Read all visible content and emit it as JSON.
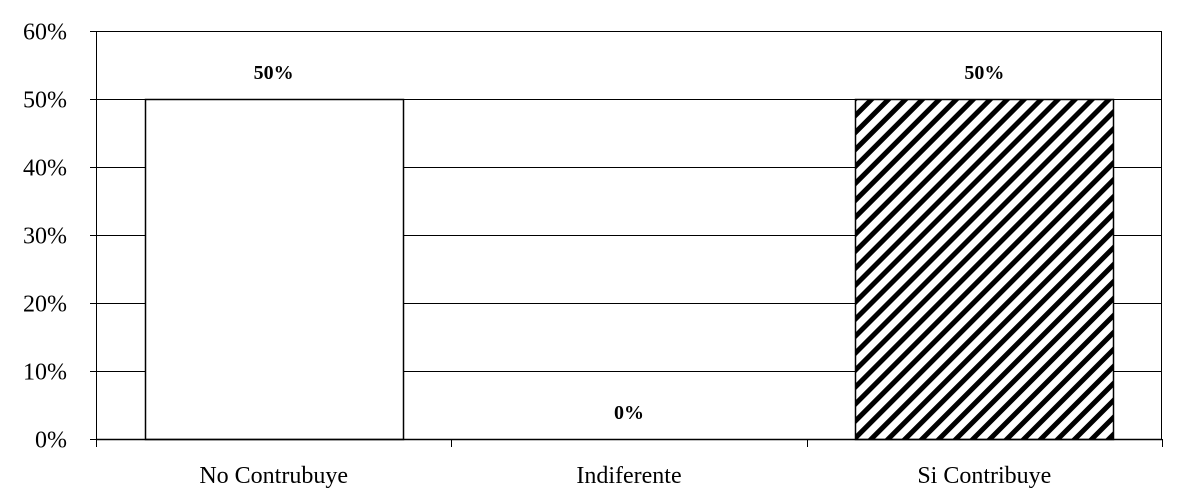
{
  "chart_data": {
    "type": "bar",
    "categories": [
      "No Contrubuye",
      "Indiferente",
      "Si Contribuye"
    ],
    "values": [
      50,
      0,
      50
    ],
    "data_labels": [
      "50%",
      "0%",
      "50%"
    ],
    "fills": [
      "white",
      "white",
      "diagonal-hatch"
    ],
    "ylim": [
      0,
      60
    ],
    "yticks": [
      0,
      10,
      20,
      30,
      40,
      50,
      60
    ],
    "ytick_labels": [
      "0%",
      "10%",
      "20%",
      "30%",
      "40%",
      "50%",
      "60%"
    ],
    "grid": true,
    "legend": "none",
    "colors": {
      "bar_stroke": "#000000",
      "bar_fill": "#ffffff",
      "grid": "#000000"
    }
  }
}
